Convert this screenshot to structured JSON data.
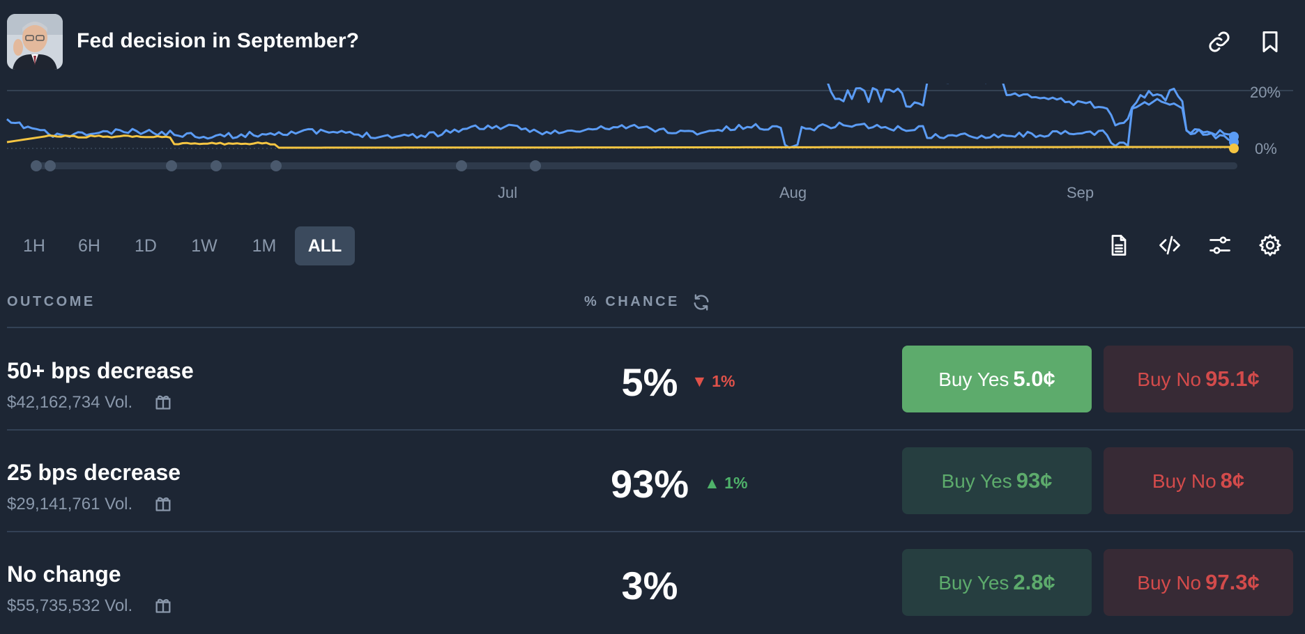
{
  "header": {
    "title": "Fed decision in September?"
  },
  "chart_data": {
    "type": "line",
    "x_labels": [
      "Jul",
      "Aug",
      "Sep"
    ],
    "y_labels": [
      "20%",
      "0%"
    ],
    "series": [
      {
        "color": "#5b9cf5"
      },
      {
        "color": "#5b9cf5"
      },
      {
        "color": "#f5c542"
      }
    ],
    "grid": true
  },
  "ranges": [
    "1H",
    "6H",
    "1D",
    "1W",
    "1M",
    "ALL"
  ],
  "active_range": "ALL",
  "columns": {
    "outcome": "OUTCOME",
    "chance": "% CHANCE"
  },
  "outcomes": [
    {
      "name": "50+ bps decrease",
      "volume": "$42,162,734 Vol.",
      "chance": "5%",
      "delta": "1%",
      "delta_dir": "down",
      "yes_label": "Buy Yes",
      "yes_price": "5.0¢",
      "no_label": "Buy No",
      "no_price": "95.1¢"
    },
    {
      "name": "25 bps decrease",
      "volume": "$29,141,761 Vol.",
      "chance": "93%",
      "delta": "1%",
      "delta_dir": "up",
      "yes_label": "Buy Yes",
      "yes_price": "93¢",
      "no_label": "Buy No",
      "no_price": "8¢"
    },
    {
      "name": "No change",
      "volume": "$55,735,532 Vol.",
      "chance": "3%",
      "delta": "",
      "delta_dir": "",
      "yes_label": "Buy Yes",
      "yes_price": "2.8¢",
      "no_label": "Buy No",
      "no_price": "97.3¢"
    }
  ],
  "icons": {
    "link": "link-icon",
    "bookmark": "bookmark-icon",
    "document": "document-icon",
    "embed": "code-icon",
    "filters": "sliders-icon",
    "settings": "gear-icon",
    "refresh": "refresh-icon",
    "gift": "gift-icon"
  },
  "colors": {
    "background": "#1d2634",
    "yes": "#5dab6c",
    "no": "#d34b4b",
    "series_blue": "#5b9cf5",
    "series_yellow": "#f5c542"
  }
}
